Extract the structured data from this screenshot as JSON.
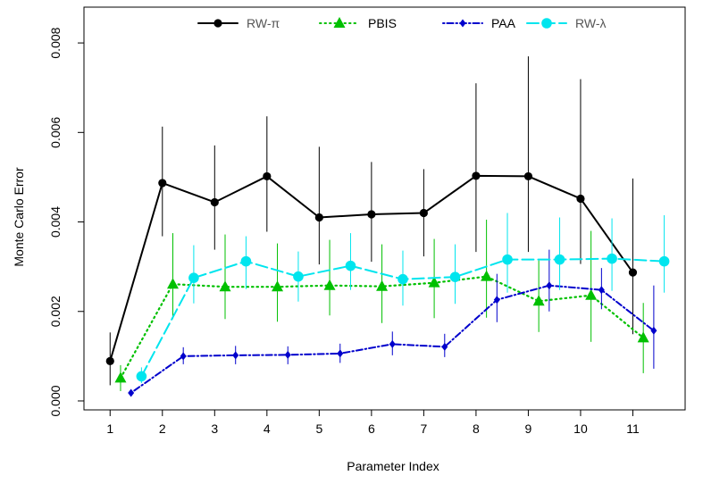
{
  "chart_data": {
    "type": "line",
    "title": "",
    "xlabel": "Parameter Index",
    "ylabel": "Monte Carlo Error",
    "xlim": [
      0.5,
      12
    ],
    "ylim": [
      -0.0002,
      0.0088
    ],
    "xticks": [
      1,
      2,
      3,
      4,
      5,
      6,
      7,
      8,
      9,
      10,
      11
    ],
    "yticks": [
      0.0,
      0.002,
      0.004,
      0.006,
      0.008
    ],
    "ytick_labels": [
      "0.000",
      "0.002",
      "0.004",
      "0.006",
      "0.008"
    ],
    "legend_position": "top-center",
    "series": [
      {
        "name": "RW-π",
        "color": "#000000",
        "line_style": "solid",
        "marker": "circle",
        "x_offset": 0.0,
        "values": [
          0.00089,
          0.00487,
          0.00444,
          0.00502,
          0.0041,
          0.00417,
          0.0042,
          0.00503,
          0.00502,
          0.00452,
          0.00287
        ],
        "upper": [
          0.00153,
          0.00613,
          0.00571,
          0.00636,
          0.00568,
          0.00534,
          0.00518,
          0.0071,
          0.0077,
          0.00719,
          0.00497
        ],
        "lower": [
          0.00035,
          0.00368,
          0.00338,
          0.00378,
          0.00305,
          0.00311,
          0.00323,
          0.00333,
          0.00333,
          0.00306,
          0.00149
        ]
      },
      {
        "name": "PBIS",
        "color": "#00c000",
        "line_style": "dotted",
        "marker": "triangle",
        "x_offset": 0.2,
        "values": [
          0.00051,
          0.00261,
          0.00255,
          0.00255,
          0.00258,
          0.00256,
          0.00264,
          0.00278,
          0.00223,
          0.00236,
          0.00141
        ],
        "upper": [
          0.0008,
          0.00375,
          0.00372,
          0.00352,
          0.0036,
          0.0035,
          0.00362,
          0.00405,
          0.00314,
          0.0038,
          0.00219
        ],
        "lower": [
          0.00022,
          0.00183,
          0.00183,
          0.00177,
          0.00191,
          0.00174,
          0.00185,
          0.00186,
          0.00154,
          0.00132,
          0.00062
        ]
      },
      {
        "name": "PAA",
        "color": "#0000cc",
        "line_style": "dotdash",
        "marker": "diamond",
        "x_offset": 0.4,
        "values": [
          0.00018,
          0.001,
          0.00102,
          0.00103,
          0.00106,
          0.00127,
          0.00121,
          0.00226,
          0.00258,
          0.00248,
          0.00157
        ],
        "upper": [
          0.00025,
          0.0012,
          0.00123,
          0.00122,
          0.00128,
          0.00155,
          0.0015,
          0.00284,
          0.00338,
          0.00297,
          0.00258
        ],
        "lower": [
          0.00013,
          0.00082,
          0.00082,
          0.00082,
          0.00085,
          0.00102,
          0.00098,
          0.00176,
          0.002,
          0.00205,
          0.00072
        ]
      },
      {
        "name": "RW-λ",
        "color": "#00e5ee",
        "line_style": "longdash",
        "marker": "circle-large",
        "x_offset": 0.6,
        "values": [
          0.00055,
          0.00275,
          0.00312,
          0.00278,
          0.00302,
          0.00272,
          0.00277,
          0.00316,
          0.00316,
          0.00318,
          0.00312
        ],
        "upper": [
          0.00075,
          0.00348,
          0.00368,
          0.00334,
          0.00375,
          0.00336,
          0.0035,
          0.0042,
          0.0041,
          0.00408,
          0.00415
        ],
        "lower": [
          0.0004,
          0.00218,
          0.0025,
          0.00222,
          0.00248,
          0.00213,
          0.00217,
          0.00242,
          0.00248,
          0.00246,
          0.00242
        ]
      }
    ]
  }
}
